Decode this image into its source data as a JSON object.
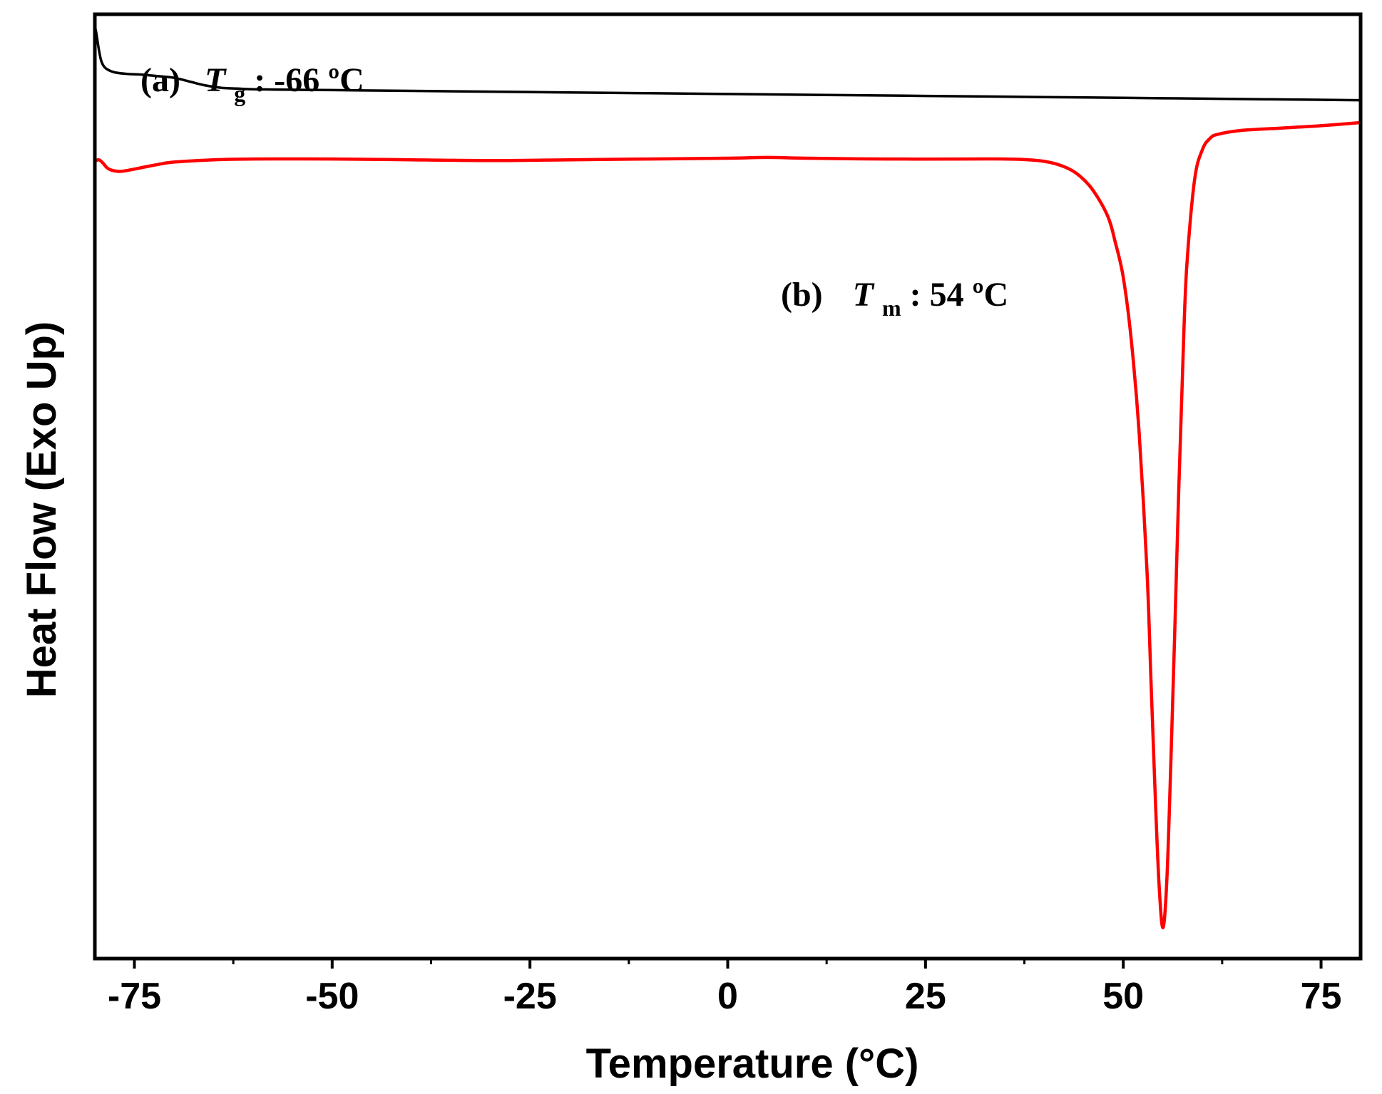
{
  "chart_data": {
    "type": "line",
    "title": "",
    "xlabel": "Temperature (°C)",
    "ylabel": "Heat Flow (Exo Up)",
    "xlim": [
      -80,
      80
    ],
    "ylim": [
      -10,
      2.2
    ],
    "y_tick_labels": false,
    "x_ticks": [
      -75,
      -50,
      -25,
      0,
      25,
      50,
      75
    ],
    "x_tick_labels": [
      "-75",
      "-50",
      "-25",
      "0",
      "25",
      "50",
      "75"
    ],
    "grid": false,
    "legend": "none",
    "series": [
      {
        "color": "#000000",
        "x": [
          -80,
          -79.8,
          -79.5,
          -79.2,
          -78.8,
          -78.3,
          -77.5,
          -76,
          -74,
          -72,
          -70,
          -68,
          -66,
          -64,
          -62,
          -60,
          -55,
          -50,
          -40,
          -30,
          -20,
          -10,
          0,
          10,
          20,
          30,
          40,
          50,
          60,
          70,
          80
        ],
        "y": [
          2.05,
          1.95,
          1.75,
          1.6,
          1.52,
          1.48,
          1.45,
          1.43,
          1.42,
          1.4,
          1.38,
          1.33,
          1.28,
          1.25,
          1.24,
          1.23,
          1.225,
          1.22,
          1.21,
          1.2,
          1.19,
          1.18,
          1.17,
          1.16,
          1.15,
          1.14,
          1.13,
          1.12,
          1.11,
          1.1,
          1.09
        ]
      },
      {
        "color": "#ff0000",
        "x": [
          -80,
          -79.5,
          -79,
          -78.5,
          -78,
          -77,
          -76,
          -74,
          -72,
          -70,
          -65,
          -60,
          -50,
          -40,
          -30,
          -20,
          -10,
          0,
          5,
          10,
          20,
          30,
          35,
          38,
          40,
          42,
          44,
          46,
          48,
          49,
          50,
          51,
          52,
          53,
          53.5,
          54,
          54.5,
          55,
          55.5,
          56,
          56.5,
          57,
          57.5,
          58,
          59,
          60,
          61,
          62,
          65,
          70,
          75,
          80
        ],
        "y": [
          0.3,
          0.32,
          0.28,
          0.22,
          0.19,
          0.17,
          0.18,
          0.22,
          0.26,
          0.29,
          0.32,
          0.33,
          0.33,
          0.32,
          0.31,
          0.32,
          0.33,
          0.34,
          0.35,
          0.34,
          0.33,
          0.33,
          0.33,
          0.32,
          0.3,
          0.25,
          0.15,
          -0.05,
          -0.4,
          -0.75,
          -1.2,
          -2.0,
          -3.2,
          -5.0,
          -6.4,
          -7.8,
          -9.0,
          -9.6,
          -9.0,
          -7.5,
          -5.8,
          -4.0,
          -2.4,
          -1.1,
          0.05,
          0.45,
          0.6,
          0.65,
          0.7,
          0.73,
          0.76,
          0.8
        ]
      }
    ],
    "annotations": [
      {
        "label": "(a)",
        "symbol": "T",
        "sub": "g",
        "value": ":  -66 ºC"
      },
      {
        "label": "(b)",
        "symbol": "T",
        "sub": "m",
        "value": ":  54 ºC"
      }
    ]
  }
}
